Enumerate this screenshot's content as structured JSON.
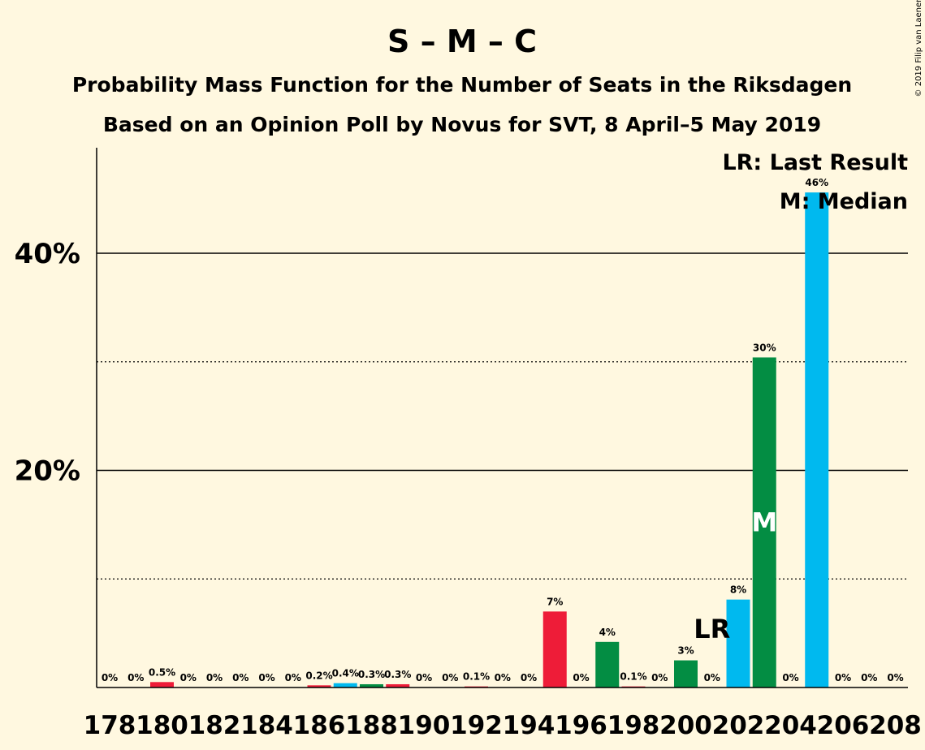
{
  "header": {
    "title": "S – M – C",
    "subtitle1": "Probability Mass Function for the Number of Seats in the Riksdagen",
    "subtitle2": "Based on an Opinion Poll by Novus for SVT, 8 April–5 May 2019",
    "credit": "© 2019 Filip van Laenen"
  },
  "legend": {
    "last_result": "LR: Last Result",
    "median": "M: Median"
  },
  "markers": {
    "lr_text": "LR",
    "m_text": "M",
    "last_result_seat": 201,
    "median_seat": 203
  },
  "colors": {
    "red": "#ee1c38",
    "blue": "#00b9ef",
    "green": "#038d43",
    "axis": "#000000"
  },
  "chart_data": {
    "type": "bar",
    "ylim": [
      0,
      50
    ],
    "y_major_ticks": [
      20,
      40
    ],
    "y_major_labels": [
      "20%",
      "40%"
    ],
    "y_minor_ticks": [
      10,
      30
    ],
    "x_tick_labels": [
      "178",
      "180",
      "182",
      "184",
      "186",
      "188",
      "190",
      "192",
      "194",
      "196",
      "198",
      "200",
      "202",
      "204",
      "206",
      "208"
    ],
    "bars": [
      {
        "seats": 178,
        "value": 0,
        "label": "0%",
        "color": "red"
      },
      {
        "seats": 179,
        "value": 0,
        "label": "0%",
        "color": "blue"
      },
      {
        "seats": 180,
        "value": 0.5,
        "label": "0.5%",
        "color": "red"
      },
      {
        "seats": 181,
        "value": 0,
        "label": "0%",
        "color": "blue"
      },
      {
        "seats": 182,
        "value": 0,
        "label": "0%",
        "color": "green"
      },
      {
        "seats": 183,
        "value": 0,
        "label": "0%",
        "color": "red"
      },
      {
        "seats": 184,
        "value": 0,
        "label": "0%",
        "color": "blue"
      },
      {
        "seats": 185,
        "value": 0,
        "label": "0%",
        "color": "green"
      },
      {
        "seats": 186,
        "value": 0.2,
        "label": "0.2%",
        "color": "red"
      },
      {
        "seats": 187,
        "value": 0.4,
        "label": "0.4%",
        "color": "blue"
      },
      {
        "seats": 188,
        "value": 0.3,
        "label": "0.3%",
        "color": "green"
      },
      {
        "seats": 189,
        "value": 0.3,
        "label": "0.3%",
        "color": "red"
      },
      {
        "seats": 190,
        "value": 0,
        "label": "0%",
        "color": "blue"
      },
      {
        "seats": 191,
        "value": 0,
        "label": "0%",
        "color": "green"
      },
      {
        "seats": 192,
        "value": 0.1,
        "label": "0.1%",
        "color": "red"
      },
      {
        "seats": 193,
        "value": 0,
        "label": "0%",
        "color": "blue"
      },
      {
        "seats": 194,
        "value": 0,
        "label": "0%",
        "color": "green"
      },
      {
        "seats": 195,
        "value": 7,
        "label": "7%",
        "color": "red"
      },
      {
        "seats": 196,
        "value": 0,
        "label": "0%",
        "color": "blue"
      },
      {
        "seats": 197,
        "value": 4.2,
        "label": "4%",
        "color": "green"
      },
      {
        "seats": 198,
        "value": 0.1,
        "label": "0.1%",
        "color": "red"
      },
      {
        "seats": 199,
        "value": 0,
        "label": "0%",
        "color": "blue"
      },
      {
        "seats": 200,
        "value": 2.5,
        "label": "3%",
        "color": "green"
      },
      {
        "seats": 201,
        "value": 0,
        "label": "0%",
        "color": "red"
      },
      {
        "seats": 202,
        "value": 8.1,
        "label": "8%",
        "color": "blue"
      },
      {
        "seats": 203,
        "value": 30.4,
        "label": "30%",
        "color": "green"
      },
      {
        "seats": 204,
        "value": 0,
        "label": "0%",
        "color": "red"
      },
      {
        "seats": 205,
        "value": 45.6,
        "label": "46%",
        "color": "blue"
      },
      {
        "seats": 206,
        "value": 0,
        "label": "0%",
        "color": "green"
      },
      {
        "seats": 207,
        "value": 0,
        "label": "0%",
        "color": "red"
      },
      {
        "seats": 208,
        "value": 0,
        "label": "0%",
        "color": "blue"
      }
    ]
  }
}
